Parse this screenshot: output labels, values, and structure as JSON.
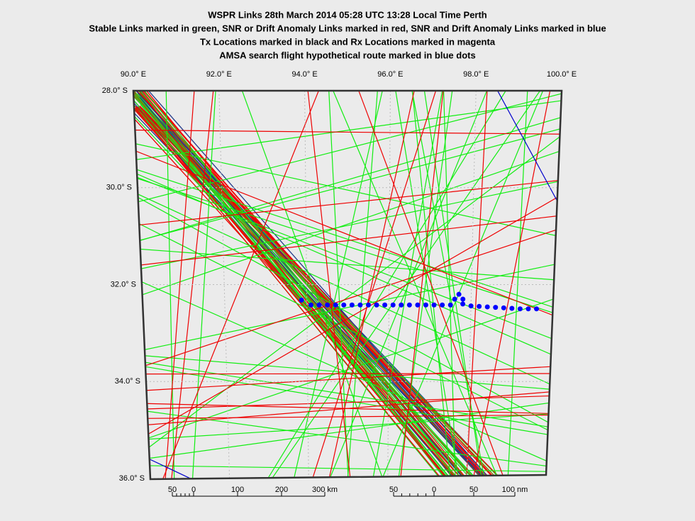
{
  "map": {
    "title_lines": [
      "WSPR Links 28th March 2014 05:28 UTC 13:28 Local Time Perth",
      "Stable Links marked in green, SNR or Drift Anomaly Links marked in red, SNR and Drift Anomaly Links marked in blue",
      "Tx Locations marked in black and Rx Locations marked in magenta",
      "AMSA search flight hypothetical route marked in blue dots"
    ],
    "lon_ticks": [
      {
        "value": 90,
        "label": "90.0° E"
      },
      {
        "value": 92,
        "label": "92.0° E"
      },
      {
        "value": 94,
        "label": "94.0° E"
      },
      {
        "value": 96,
        "label": "96.0° E"
      },
      {
        "value": 98,
        "label": "98.0° E"
      },
      {
        "value": 100,
        "label": "100.0° E"
      }
    ],
    "lat_ticks": [
      {
        "value": -28,
        "label": "28.0° S"
      },
      {
        "value": -30,
        "label": "30.0° S"
      },
      {
        "value": -32,
        "label": "32.0° S"
      },
      {
        "value": -34,
        "label": "34.0° S"
      },
      {
        "value": -36,
        "label": "36.0° S"
      }
    ],
    "km_scale": [
      "50",
      "0",
      "100",
      "200",
      "300 km"
    ],
    "nm_scale": [
      "50",
      "0",
      "50",
      "100 nm"
    ],
    "route": {
      "lon": [
        93.87,
        94.1,
        94.3,
        94.5,
        94.7,
        94.9,
        95.1,
        95.3,
        95.5,
        95.7,
        95.9,
        96.1,
        96.3,
        96.5,
        96.7,
        96.9,
        97.1,
        97.3,
        97.5,
        97.6,
        97.7,
        97.8,
        97.8,
        98.0,
        98.2,
        98.4,
        98.6,
        98.8,
        99.0,
        99.2,
        99.4,
        99.6
      ],
      "lat": [
        -32.32,
        -32.42,
        -32.42,
        -32.42,
        -32.42,
        -32.42,
        -32.42,
        -32.42,
        -32.42,
        -32.42,
        -32.42,
        -32.42,
        -32.42,
        -32.42,
        -32.42,
        -32.42,
        -32.42,
        -32.42,
        -32.42,
        -32.3,
        -32.2,
        -32.3,
        -32.4,
        -32.44,
        -32.45,
        -32.46,
        -32.47,
        -32.48,
        -32.49,
        -32.5,
        -32.5,
        -32.5
      ]
    }
  }
}
